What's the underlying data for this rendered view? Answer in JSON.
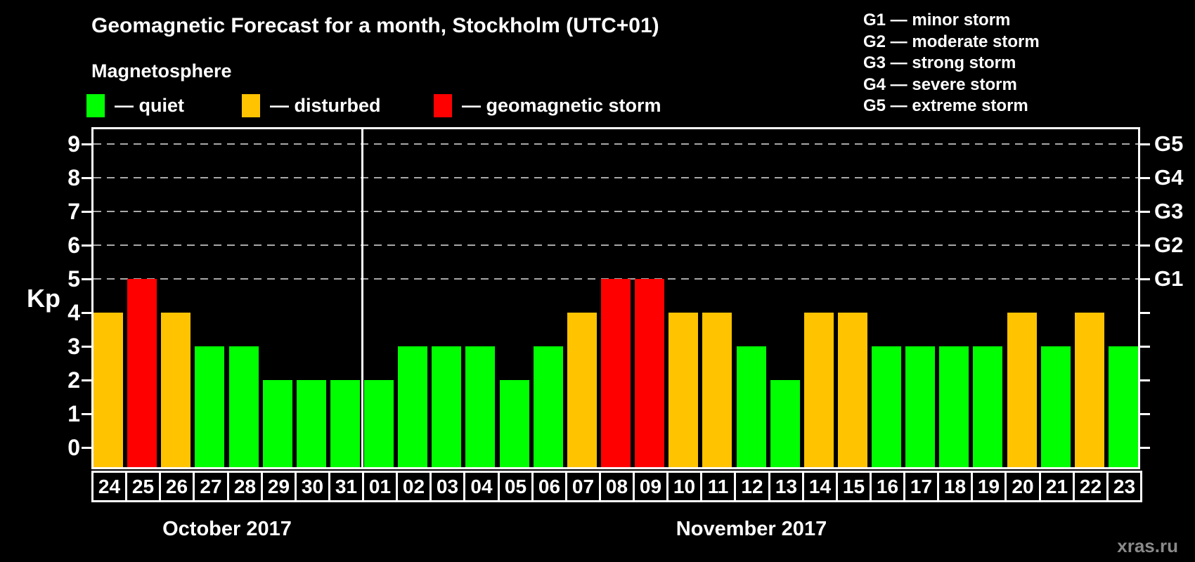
{
  "page": {
    "background": "#000000",
    "watermark": "xras.ru"
  },
  "header": {
    "title": "Geomagnetic Forecast for a month, Stockholm (UTC+01)",
    "subtitle": "Magnetosphere"
  },
  "legend": {
    "items": [
      {
        "status": "quiet",
        "label": "— quiet",
        "color": "#00ff00"
      },
      {
        "status": "disturbed",
        "label": "— disturbed",
        "color": "#ffc300"
      },
      {
        "status": "storm",
        "label": "— geomagnetic storm",
        "color": "#ff0000"
      }
    ]
  },
  "g_legend": {
    "items": [
      "G1 — minor storm",
      "G2 — moderate storm",
      "G3 — strong storm",
      "G4 — severe storm",
      "G5 — extreme storm"
    ]
  },
  "chart_data": {
    "type": "bar",
    "title": "Geomagnetic Forecast for a month, Stockholm (UTC+01)",
    "ylabel": "Kp",
    "ylim": [
      0,
      9.6
    ],
    "yticks": [
      0,
      1,
      2,
      3,
      4,
      5,
      6,
      7,
      8,
      9
    ],
    "gridline_levels": [
      5,
      6,
      7,
      8,
      9
    ],
    "grid_style": "dashed gray horizontal lines at Kp 5-9 only",
    "legend_position": "top",
    "right_axis": [
      {
        "label": "G5",
        "kp": 9
      },
      {
        "label": "G4",
        "kp": 8
      },
      {
        "label": "G3",
        "kp": 7
      },
      {
        "label": "G2",
        "kp": 6
      },
      {
        "label": "G1",
        "kp": 5
      }
    ],
    "status_colors": {
      "quiet": "#00ff00",
      "disturbed": "#ffc300",
      "storm": "#ff0000"
    },
    "months": [
      {
        "label": "October 2017",
        "bar_count": 8
      },
      {
        "label": "November 2017",
        "bar_count": 23
      }
    ],
    "bars": [
      {
        "date": "24",
        "kp": 4,
        "status": "disturbed"
      },
      {
        "date": "25",
        "kp": 5,
        "status": "storm"
      },
      {
        "date": "26",
        "kp": 4,
        "status": "disturbed"
      },
      {
        "date": "27",
        "kp": 3,
        "status": "quiet"
      },
      {
        "date": "28",
        "kp": 3,
        "status": "quiet"
      },
      {
        "date": "29",
        "kp": 2,
        "status": "quiet"
      },
      {
        "date": "30",
        "kp": 2,
        "status": "quiet"
      },
      {
        "date": "31",
        "kp": 2,
        "status": "quiet"
      },
      {
        "date": "01",
        "kp": 2,
        "status": "quiet"
      },
      {
        "date": "02",
        "kp": 3,
        "status": "quiet"
      },
      {
        "date": "03",
        "kp": 3,
        "status": "quiet"
      },
      {
        "date": "04",
        "kp": 3,
        "status": "quiet"
      },
      {
        "date": "05",
        "kp": 2,
        "status": "quiet"
      },
      {
        "date": "06",
        "kp": 3,
        "status": "quiet"
      },
      {
        "date": "07",
        "kp": 4,
        "status": "disturbed"
      },
      {
        "date": "08",
        "kp": 5,
        "status": "storm"
      },
      {
        "date": "09",
        "kp": 5,
        "status": "storm"
      },
      {
        "date": "10",
        "kp": 4,
        "status": "disturbed"
      },
      {
        "date": "11",
        "kp": 4,
        "status": "disturbed"
      },
      {
        "date": "12",
        "kp": 3,
        "status": "quiet"
      },
      {
        "date": "13",
        "kp": 2,
        "status": "quiet"
      },
      {
        "date": "14",
        "kp": 4,
        "status": "disturbed"
      },
      {
        "date": "15",
        "kp": 4,
        "status": "disturbed"
      },
      {
        "date": "16",
        "kp": 3,
        "status": "quiet"
      },
      {
        "date": "17",
        "kp": 3,
        "status": "quiet"
      },
      {
        "date": "18",
        "kp": 3,
        "status": "quiet"
      },
      {
        "date": "19",
        "kp": 3,
        "status": "quiet"
      },
      {
        "date": "20",
        "kp": 4,
        "status": "disturbed"
      },
      {
        "date": "21",
        "kp": 3,
        "status": "quiet"
      },
      {
        "date": "22",
        "kp": 4,
        "status": "disturbed"
      },
      {
        "date": "23",
        "kp": 3,
        "status": "quiet"
      }
    ]
  }
}
